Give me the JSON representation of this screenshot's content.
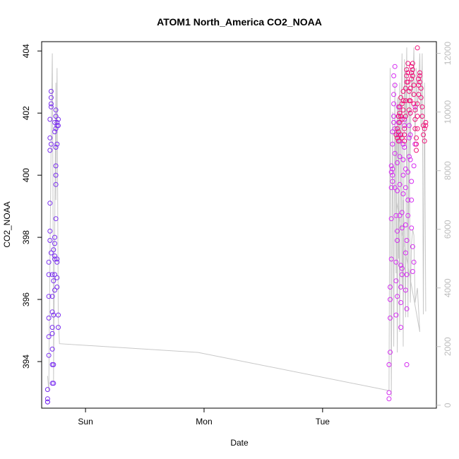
{
  "chart_data": {
    "type": "scatter",
    "title": "ATOM1 North_America CO2_NOAA",
    "xlabel": "Date",
    "ylabel": "CO2_NOAA",
    "x_ticks": [
      "Sun",
      "Mon",
      "Tue"
    ],
    "x_tick_days": [
      1.0,
      2.0,
      3.0
    ],
    "xlim": [
      0.63,
      3.96
    ],
    "ylim": [
      392.5,
      404.3
    ],
    "y_ticks": [
      394,
      396,
      398,
      400,
      402,
      404
    ],
    "y2lim": [
      -100,
      12400
    ],
    "y2_ticks": [
      0,
      2000,
      4000,
      6000,
      8000,
      10000,
      12000
    ],
    "grid": false,
    "colors": {
      "early": "#7a2ef0",
      "middle": "#d42cf0",
      "late": "#f0147a",
      "secondary_line": "#c8c8c8"
    },
    "series": [
      {
        "color_key": "early",
        "x": [
          0.68,
          0.68,
          0.68,
          0.68,
          0.69,
          0.69,
          0.69,
          0.69,
          0.69,
          0.69,
          0.7,
          0.7,
          0.7,
          0.7,
          0.7,
          0.7,
          0.71,
          0.71,
          0.71,
          0.71,
          0.71,
          0.71,
          0.72,
          0.72,
          0.72,
          0.72,
          0.72,
          0.72,
          0.72,
          0.72,
          0.73,
          0.73,
          0.73,
          0.73,
          0.73,
          0.74,
          0.74,
          0.74,
          0.74,
          0.74,
          0.74,
          0.74,
          0.74,
          0.75,
          0.75,
          0.75,
          0.75,
          0.75,
          0.75,
          0.75,
          0.75,
          0.76,
          0.76,
          0.76,
          0.76,
          0.76,
          0.76,
          0.76,
          0.77,
          0.77,
          0.77,
          0.77
        ],
        "y": [
          392.8,
          392.7,
          392.7,
          393.1,
          394.2,
          394.8,
          395.4,
          396.1,
          396.8,
          397.2,
          397.9,
          398.2,
          399.1,
          400.8,
          401.2,
          401.8,
          402.3,
          402.5,
          402.7,
          402.2,
          401.0,
          397.5,
          396.8,
          396.1,
          395.6,
          395.1,
          394.9,
          394.4,
          393.9,
          393.3,
          393.3,
          393.9,
          395.5,
          396.6,
          397.6,
          398.0,
          397.3,
          396.8,
          397.8,
          397.4,
          396.3,
          401.4,
          401.7,
          401.9,
          402.1,
          401.5,
          400.9,
          400.3,
          399.7,
          398.6,
          400.0,
          401.7,
          401.6,
          401.0,
          397.2,
          396.7,
          396.4,
          397.3,
          395.5,
          395.1,
          401.8,
          401.6
        ]
      },
      {
        "color_key": "middle",
        "x": [
          3.56,
          3.56,
          3.56,
          3.57,
          3.57,
          3.57,
          3.57,
          3.58,
          3.58,
          3.58,
          3.58,
          3.58,
          3.59,
          3.59,
          3.59,
          3.59,
          3.59,
          3.6,
          3.6,
          3.6,
          3.6,
          3.6,
          3.61,
          3.61,
          3.61,
          3.61,
          3.61,
          3.62,
          3.62,
          3.62,
          3.62,
          3.63,
          3.63,
          3.63,
          3.63,
          3.63,
          3.64,
          3.64,
          3.64,
          3.64,
          3.65,
          3.65,
          3.65,
          3.65,
          3.66,
          3.66,
          3.66,
          3.66,
          3.67,
          3.67,
          3.67,
          3.67,
          3.68,
          3.68,
          3.68,
          3.68,
          3.69,
          3.69,
          3.69,
          3.69,
          3.7,
          3.7,
          3.7,
          3.7,
          3.7,
          3.71,
          3.71,
          3.71,
          3.71,
          3.72,
          3.72,
          3.72,
          3.73,
          3.73,
          3.73,
          3.74,
          3.74,
          3.74,
          3.75,
          3.75,
          3.75,
          3.76,
          3.76,
          3.77,
          3.77,
          3.78,
          3.78
        ],
        "y": [
          392.8,
          393.0,
          393.9,
          394.3,
          395.4,
          396.0,
          396.4,
          397.3,
          398.6,
          399.6,
          400.1,
          400.3,
          400.0,
          399.8,
          400.2,
          401.0,
          401.4,
          401.7,
          401.9,
          402.3,
          402.6,
          403.2,
          403.5,
          402.9,
          401.5,
          400.7,
          399.6,
          398.7,
          397.2,
          396.6,
          395.5,
          396.1,
          397.9,
          398.2,
          399.5,
          400.4,
          401.3,
          401.9,
          402.2,
          401.7,
          401.1,
          400.6,
          399.7,
          398.7,
          397.1,
          396.4,
          395.9,
          395.1,
          396.8,
          397.0,
          398.3,
          398.8,
          399.4,
          400.0,
          400.5,
          401.0,
          401.6,
          401.8,
          401.3,
          400.9,
          400.2,
          399.6,
          398.4,
          397.5,
          396.3,
          393.9,
          395.7,
          396.8,
          397.9,
          398.7,
          399.2,
          400.1,
          400.6,
          401.2,
          401.6,
          402.0,
          401.3,
          400.5,
          399.8,
          399.2,
          398.3,
          397.7,
          396.9,
          397.2,
          400.3,
          402.2,
          401.0
        ]
      },
      {
        "color_key": "late",
        "x": [
          3.62,
          3.63,
          3.63,
          3.64,
          3.64,
          3.64,
          3.65,
          3.65,
          3.65,
          3.66,
          3.66,
          3.66,
          3.67,
          3.67,
          3.67,
          3.68,
          3.68,
          3.68,
          3.69,
          3.69,
          3.69,
          3.7,
          3.7,
          3.7,
          3.71,
          3.71,
          3.71,
          3.72,
          3.72,
          3.72,
          3.73,
          3.73,
          3.73,
          3.74,
          3.74,
          3.74,
          3.75,
          3.75,
          3.75,
          3.76,
          3.76,
          3.76,
          3.77,
          3.77,
          3.77,
          3.78,
          3.78,
          3.78,
          3.79,
          3.79,
          3.79,
          3.8,
          3.8,
          3.8,
          3.81,
          3.81,
          3.81,
          3.82,
          3.82,
          3.82,
          3.83,
          3.83,
          3.84,
          3.84,
          3.85,
          3.85,
          3.86,
          3.86,
          3.87,
          3.87
        ],
        "y": [
          401.3,
          401.2,
          401.5,
          401.9,
          401.4,
          401.1,
          401.7,
          402.0,
          402.2,
          402.5,
          401.9,
          401.3,
          401.2,
          401.8,
          402.3,
          402.7,
          402.4,
          402.1,
          401.5,
          401.1,
          401.3,
          401.9,
          402.4,
          402.8,
          403.0,
          403.2,
          403.4,
          403.6,
          403.3,
          403.0,
          402.7,
          402.4,
          402.1,
          402.0,
          402.4,
          402.8,
          403.1,
          403.3,
          403.5,
          403.6,
          403.4,
          403.2,
          402.9,
          402.6,
          402.3,
          402.1,
          401.8,
          401.5,
          401.2,
          401.0,
          400.8,
          401.5,
          401.9,
          402.3,
          402.6,
          402.9,
          403.1,
          403.3,
          403.2,
          403.0,
          402.8,
          402.5,
          402.2,
          401.9,
          401.6,
          401.3,
          401.1,
          401.5,
          401.7,
          401.6
        ]
      },
      {
        "color_key": "late",
        "x": [
          3.8
        ],
        "y": [
          404.1
        ]
      }
    ],
    "secondary_line": {
      "axis": "right",
      "x": [
        0.68,
        0.69,
        0.7,
        0.71,
        0.72,
        0.73,
        0.73,
        0.74,
        0.75,
        0.75,
        0.76,
        0.77,
        0.78,
        1.95,
        3.56,
        3.57,
        3.58,
        3.59,
        3.6,
        3.61,
        3.62,
        3.62,
        3.63,
        3.64,
        3.65,
        3.66,
        3.67,
        3.68,
        3.69,
        3.7,
        3.71,
        3.72,
        3.73,
        3.74,
        3.75,
        3.76,
        3.77,
        3.78,
        3.8,
        3.82,
        3.62,
        3.63,
        3.64,
        3.65,
        3.66,
        3.67,
        3.68,
        3.69,
        3.7,
        3.71,
        3.72,
        3.73,
        3.74,
        3.75,
        3.76,
        3.77,
        3.78,
        3.79,
        3.8,
        3.81,
        3.82,
        3.83,
        3.84,
        3.85,
        3.86,
        3.87
      ],
      "y": [
        1000,
        500,
        5000,
        9000,
        12000,
        3000,
        800,
        6000,
        11000,
        7000,
        11500,
        3000,
        2100,
        1800,
        500,
        11500,
        300,
        10000,
        2000,
        11000,
        4500,
        9500,
        1800,
        10500,
        2500,
        9500,
        4000,
        7000,
        6000,
        3000,
        11500,
        3000,
        9000,
        3500,
        5500,
        6000,
        5800,
        3500,
        4000,
        2500,
        7000,
        10500,
        5000,
        11000,
        8000,
        12000,
        2000,
        11800,
        9500,
        12200,
        4000,
        11000,
        8500,
        11500,
        10500,
        12200,
        9000,
        11500,
        10000,
        11000,
        12000,
        9500,
        12000,
        3100,
        11000,
        3200
      ]
    }
  }
}
